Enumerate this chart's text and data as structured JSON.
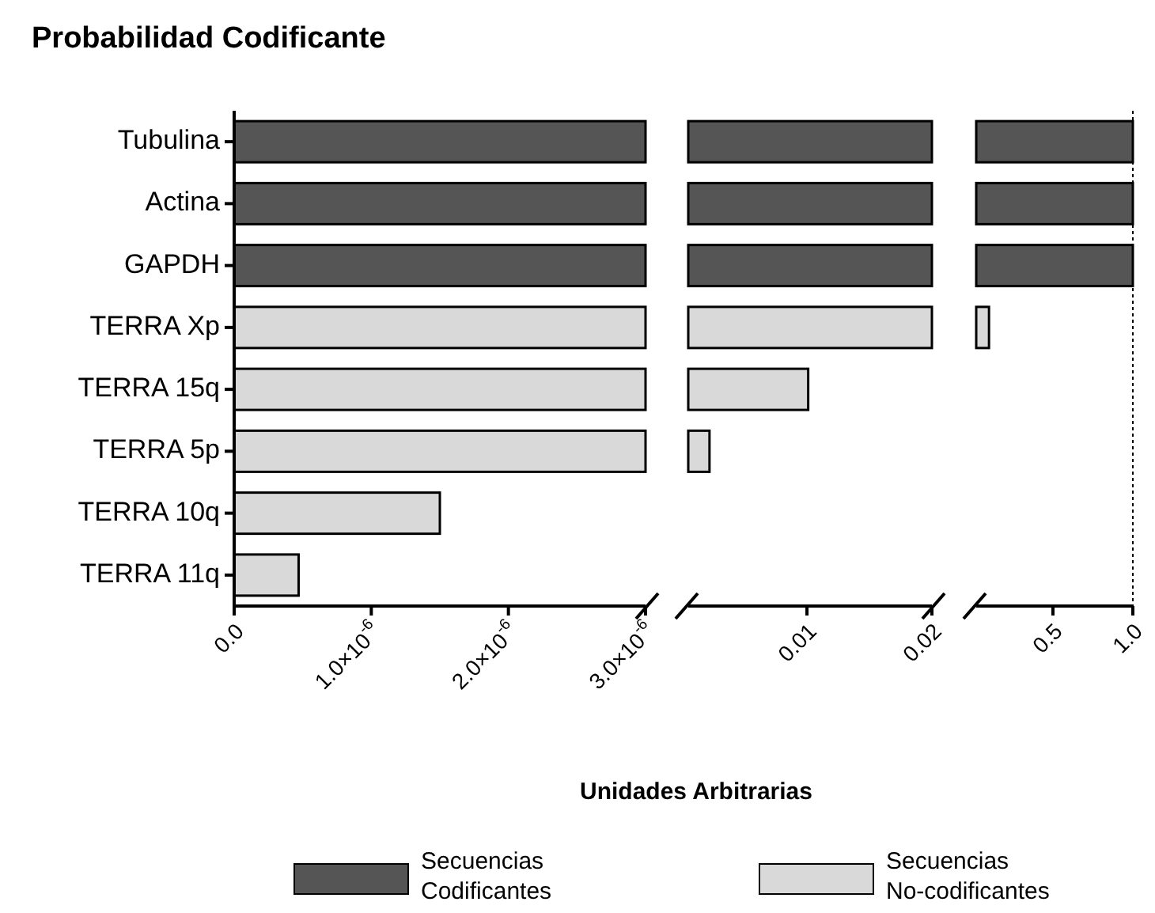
{
  "chart_data": [
    {
      "type": "bar",
      "orientation": "horizontal",
      "title": "Probabilidad Codificante",
      "xlabel": "Unidades Arbitrarias",
      "categories": [
        "Tubulina",
        "Actina",
        "GAPDH",
        "TERRA Xp",
        "TERRA 15q",
        "TERRA 5p",
        "TERRA 10q",
        "TERRA 11q"
      ],
      "xlim": [
        0,
        3e-06
      ],
      "xticks": [
        {
          "value": 0,
          "label": "0.0"
        },
        {
          "value": 1e-06,
          "label": "1.0×10$^{-6}$"
        },
        {
          "value": 2e-06,
          "label": "2.0×10$^{-6}$"
        },
        {
          "value": 3e-06,
          "label": "3.0×10$^{-6}$"
        }
      ],
      "legend": "bottom",
      "series": [
        {
          "name": "Secuencias Codificantes",
          "color": "#555555",
          "values": [
            3e-06,
            3e-06,
            3e-06,
            null,
            null,
            null,
            null,
            null
          ]
        },
        {
          "name": "Secuencias No-codificantes",
          "color": "#d9d9d9",
          "values": [
            null,
            null,
            null,
            3e-06,
            3e-06,
            3e-06,
            1.5e-06,
            4.7e-07
          ]
        }
      ]
    },
    {
      "type": "bar",
      "orientation": "horizontal",
      "tick_labels": "x",
      "xlim": [
        0.0005,
        0.02
      ],
      "xticks": [
        0.01,
        0.02
      ],
      "series": [
        {
          "color": "#555555",
          "values": [
            0.02,
            0.02,
            0.02,
            null,
            null,
            null,
            null,
            null
          ]
        },
        {
          "color": "#d9d9d9",
          "values": [
            null,
            null,
            null,
            0.02,
            0.0101,
            0.0022,
            null,
            null
          ]
        }
      ]
    },
    {
      "type": "bar",
      "orientation": "horizontal",
      "tick_labels": "x",
      "xlim": [
        0.02,
        1
      ],
      "xticks": [
        0.5,
        {
          "value": 1,
          "label": "1.0"
        }
      ],
      "ref_lines": [
        {
          "axis": "x",
          "value": 1,
          "line_style": "dotted"
        }
      ],
      "series": [
        {
          "color": "#555555",
          "values": [
            1,
            1,
            1,
            null,
            null,
            null,
            null,
            null
          ]
        },
        {
          "color": "#d9d9d9",
          "values": [
            null,
            null,
            null,
            0.1,
            null,
            null,
            null,
            null
          ]
        }
      ]
    }
  ]
}
